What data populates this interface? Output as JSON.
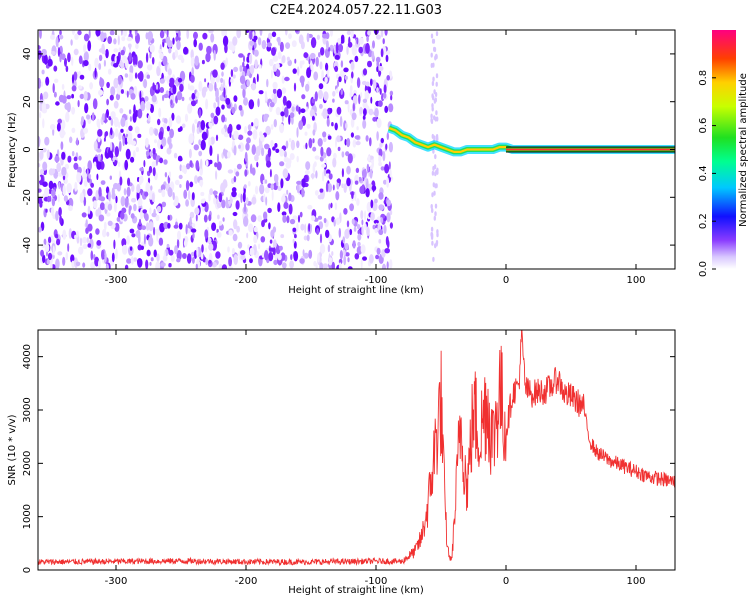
{
  "chart_data": [
    {
      "type": "heatmap",
      "title": "C2E4.2024.057.22.11.G03",
      "xlabel": "Height of straight line (km)",
      "ylabel": "Frequency (Hz)",
      "xlim": [
        -360,
        130
      ],
      "ylim": [
        -50,
        50
      ],
      "xticks": [
        -300,
        -200,
        -100,
        0,
        100
      ],
      "yticks": [
        -40,
        -20,
        0,
        20,
        40
      ],
      "noise_region_x": [
        -360,
        -88
      ],
      "signal_track": {
        "x": [
          -90,
          -85,
          -80,
          -75,
          -70,
          -65,
          -60,
          -55,
          -50,
          -45,
          -40,
          -35,
          -30,
          -25,
          -20,
          -15,
          -10,
          -5,
          0,
          5,
          10,
          20,
          40,
          60,
          80,
          100,
          130
        ],
        "y": [
          9,
          8,
          6,
          5,
          3,
          2,
          1,
          2,
          1,
          0,
          -1,
          -1,
          0,
          0,
          0,
          0,
          0,
          1,
          1,
          0,
          0,
          0,
          0,
          0,
          0,
          0,
          0
        ]
      },
      "colorbar": {
        "label": "Normalized spectral amplitude",
        "range": [
          0.0,
          1.0
        ],
        "ticks": [
          0.0,
          0.2,
          0.4,
          0.6,
          0.8
        ],
        "tick_labels": [
          "0.0",
          "0.2",
          "0.4",
          "0.6",
          "0.8"
        ]
      }
    },
    {
      "type": "line",
      "xlabel": "Height of straight line (km)",
      "ylabel": "SNR (10 * v/v)",
      "xlim": [
        -360,
        130
      ],
      "ylim": [
        0,
        4500
      ],
      "xticks": [
        -300,
        -200,
        -100,
        0,
        100
      ],
      "yticks": [
        0,
        1000,
        2000,
        3000,
        4000
      ],
      "series": [
        {
          "name": "SNR",
          "color": "#f03030",
          "x": [
            -360,
            -300,
            -250,
            -200,
            -150,
            -100,
            -80,
            -70,
            -65,
            -60,
            -55,
            -50,
            -47,
            -45,
            -42,
            -40,
            -37,
            -35,
            -30,
            -25,
            -20,
            -15,
            -10,
            -5,
            0,
            5,
            10,
            12,
            15,
            20,
            25,
            30,
            35,
            40,
            45,
            50,
            55,
            60,
            62,
            65,
            70,
            80,
            90,
            100,
            110,
            120,
            130
          ],
          "y": [
            150,
            160,
            170,
            155,
            150,
            165,
            160,
            350,
            600,
            1200,
            2200,
            3200,
            1200,
            400,
            150,
            800,
            2000,
            2800,
            1500,
            3000,
            2500,
            3200,
            2400,
            3400,
            2600,
            3300,
            3500,
            4400,
            3400,
            3300,
            3350,
            3350,
            3450,
            3600,
            3300,
            3250,
            3150,
            3050,
            2700,
            2400,
            2200,
            2050,
            1950,
            1850,
            1750,
            1700,
            1650
          ]
        }
      ]
    }
  ]
}
